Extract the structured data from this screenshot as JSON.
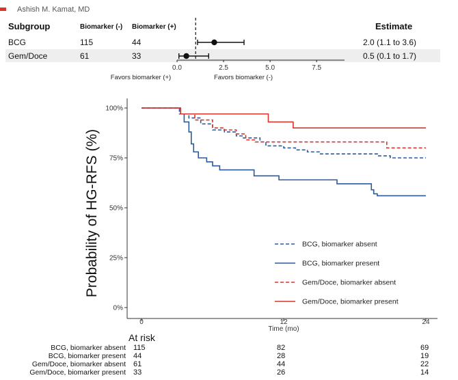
{
  "author": "Ashish M. Kamat, MD",
  "forest": {
    "headers": {
      "subgroup": "Subgroup",
      "neg": "Biomarker (-)",
      "pos": "Biomarker (+)",
      "estimate": "Estimate"
    },
    "rows": [
      {
        "name": "BCG",
        "neg": "115",
        "pos": "44",
        "estimate": "2.0 (1.1 to 3.6)",
        "point": 2.0,
        "lo": 1.1,
        "hi": 3.6
      },
      {
        "name": "Gem/Doce",
        "neg": "61",
        "pos": "33",
        "estimate": "0.5 (0.1 to 1.7)",
        "point": 0.5,
        "lo": 0.1,
        "hi": 1.7
      }
    ],
    "axis_ticks": [
      "0.0",
      "2.5",
      "5.0",
      "7.5"
    ],
    "reference_line": 1.0,
    "favors_left": "Favors biomarker (+)",
    "favors_right": "Favors biomarker (-)"
  },
  "chart_data": [
    {
      "type": "scatter",
      "subtype": "forest-plot",
      "x_range": [
        0,
        9
      ],
      "reference_x": 1.0,
      "series": [
        {
          "name": "BCG",
          "point": 2.0,
          "ci": [
            1.1,
            3.6
          ]
        },
        {
          "name": "Gem/Doce",
          "point": 0.5,
          "ci": [
            0.1,
            1.7
          ]
        }
      ]
    },
    {
      "type": "line",
      "subtype": "kaplan-meier",
      "ylabel": "Probability of HG-RFS (%)",
      "xlabel": "Time (mo)",
      "xlim": [
        0,
        24
      ],
      "ylim": [
        0,
        100
      ],
      "x_ticks": [
        "0",
        "12",
        "24"
      ],
      "y_ticks": [
        "0%",
        "25%",
        "50%",
        "75%",
        "100%"
      ],
      "legend_position": "bottom-right",
      "series": [
        {
          "name": "BCG, biomarker absent",
          "color": "#2a5a9b",
          "dash": true,
          "points": [
            [
              0,
              100
            ],
            [
              3,
              100
            ],
            [
              3.2,
              97
            ],
            [
              4,
              95
            ],
            [
              5,
              92
            ],
            [
              6,
              89
            ],
            [
              7,
              88
            ],
            [
              8,
              86
            ],
            [
              8.5,
              85
            ],
            [
              10,
              83
            ],
            [
              10.5,
              81
            ],
            [
              12,
              80
            ],
            [
              13,
              79
            ],
            [
              14,
              78
            ],
            [
              15,
              77
            ],
            [
              19,
              77
            ],
            [
              20,
              76
            ],
            [
              21,
              75
            ],
            [
              24,
              75
            ]
          ]
        },
        {
          "name": "BCG, biomarker present",
          "color": "#2a5a9b",
          "dash": false,
          "points": [
            [
              0,
              100
            ],
            [
              3,
              100
            ],
            [
              3.3,
              97
            ],
            [
              3.6,
              93
            ],
            [
              4,
              88
            ],
            [
              4.2,
              82
            ],
            [
              4.4,
              78
            ],
            [
              4.8,
              75
            ],
            [
              5.5,
              73
            ],
            [
              6,
              71
            ],
            [
              6.6,
              69
            ],
            [
              9.5,
              66
            ],
            [
              11.6,
              64
            ],
            [
              16.5,
              62
            ],
            [
              19.4,
              59
            ],
            [
              19.6,
              57
            ],
            [
              19.9,
              56
            ],
            [
              24,
              56
            ]
          ]
        },
        {
          "name": "Gem/Doce, biomarker absent",
          "color": "#d9352b",
          "dash": true,
          "points": [
            [
              0,
              100
            ],
            [
              3,
              100
            ],
            [
              3.3,
              97
            ],
            [
              4.5,
              94
            ],
            [
              6,
              90
            ],
            [
              7,
              89
            ],
            [
              8,
              87
            ],
            [
              8.8,
              84
            ],
            [
              9.6,
              83
            ],
            [
              20.5,
              83
            ],
            [
              20.7,
              80
            ],
            [
              24,
              80
            ]
          ]
        },
        {
          "name": "Gem/Doce, biomarker present",
          "color": "#d9352b",
          "dash": false,
          "points": [
            [
              0,
              100
            ],
            [
              3,
              100
            ],
            [
              3.3,
              97
            ],
            [
              10.5,
              97
            ],
            [
              10.7,
              93
            ],
            [
              12.6,
              93
            ],
            [
              12.8,
              90
            ],
            [
              24,
              90
            ]
          ]
        }
      ]
    }
  ],
  "at_risk": {
    "title": "At risk",
    "rows": [
      {
        "label": "BCG, biomarker absent",
        "values": [
          "115",
          "82",
          "69"
        ]
      },
      {
        "label": "BCG, biomarker present",
        "values": [
          "44",
          "28",
          "19"
        ]
      },
      {
        "label": "Gem/Doce, biomarker absent",
        "values": [
          "61",
          "44",
          "22"
        ]
      },
      {
        "label": "Gem/Doce, biomarker present",
        "values": [
          "33",
          "26",
          "14"
        ]
      }
    ]
  }
}
